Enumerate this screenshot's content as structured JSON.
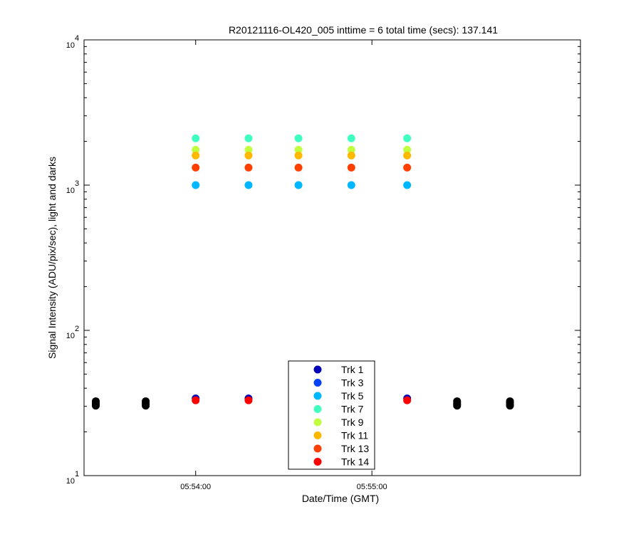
{
  "chart_data": {
    "type": "scatter",
    "title": "R20121116-OL420_005 inttime = 6 total time (secs): 137.141",
    "xlabel": "Date/Time (GMT)",
    "ylabel": "Signal Intensity (ADU/pix/sec), light and darks",
    "xscale": "time",
    "yscale": "log",
    "xlim": [
      "05:53:22",
      "05:56:11"
    ],
    "ylim": [
      10,
      10000
    ],
    "x_ticks": [
      "05:54:00",
      "05:55:00"
    ],
    "y_ticks": [
      {
        "value": 10,
        "base": "10",
        "exp": "1"
      },
      {
        "value": 100,
        "base": "10",
        "exp": "2"
      },
      {
        "value": 1000,
        "base": "10",
        "exp": "3"
      },
      {
        "value": 10000,
        "base": "10",
        "exp": "4"
      }
    ],
    "grid": false,
    "legend_position": "bottom-center",
    "series": [
      {
        "name": "Trk 1",
        "color": "#0000b8",
        "x": [
          "05:54:00",
          "05:54:18",
          "05:55:12"
        ],
        "y": [
          34,
          34,
          34
        ]
      },
      {
        "name": "Trk 3",
        "color": "#0040ff",
        "x": [],
        "y": []
      },
      {
        "name": "Trk 5",
        "color": "#00b8ff",
        "x": [
          "05:54:00",
          "05:54:18",
          "05:54:35",
          "05:54:53",
          "05:55:12"
        ],
        "y": [
          1000,
          1000,
          1000,
          1000,
          1000
        ]
      },
      {
        "name": "Trk 7",
        "color": "#40ffc0",
        "x": [
          "05:54:00",
          "05:54:18",
          "05:54:35",
          "05:54:53",
          "05:55:12"
        ],
        "y": [
          2100,
          2100,
          2100,
          2100,
          2100
        ]
      },
      {
        "name": "Trk 9",
        "color": "#c0ff40",
        "x": [
          "05:54:00",
          "05:54:18",
          "05:54:35",
          "05:54:53",
          "05:55:12"
        ],
        "y": [
          1750,
          1750,
          1750,
          1750,
          1750
        ]
      },
      {
        "name": "Trk 11",
        "color": "#ffb800",
        "x": [
          "05:54:00",
          "05:54:18",
          "05:54:35",
          "05:54:53",
          "05:55:12"
        ],
        "y": [
          1600,
          1600,
          1600,
          1600,
          1600
        ]
      },
      {
        "name": "Trk 13",
        "color": "#ff4000",
        "x": [
          "05:54:00",
          "05:54:18",
          "05:54:35",
          "05:54:53",
          "05:55:12"
        ],
        "y": [
          1320,
          1320,
          1320,
          1320,
          1320
        ]
      },
      {
        "name": "Trk 14",
        "color": "#ff0000",
        "x": [
          "05:54:00",
          "05:54:18",
          "05:55:12"
        ],
        "y": [
          33,
          33,
          33
        ]
      },
      {
        "name": "",
        "color": "#000000",
        "x": [
          "05:53:26",
          "05:53:26",
          "05:53:26",
          "05:53:26",
          "05:53:43",
          "05:53:43",
          "05:53:43",
          "05:53:43",
          "05:55:29",
          "05:55:29",
          "05:55:29",
          "05:55:29",
          "05:55:47",
          "05:55:47",
          "05:55:47",
          "05:55:47"
        ],
        "y": [
          32.5,
          31.7,
          31.0,
          30.3,
          32.5,
          31.7,
          31.0,
          30.3,
          32.5,
          31.7,
          31.0,
          30.3,
          32.5,
          31.7,
          31.0,
          30.3
        ]
      }
    ]
  }
}
